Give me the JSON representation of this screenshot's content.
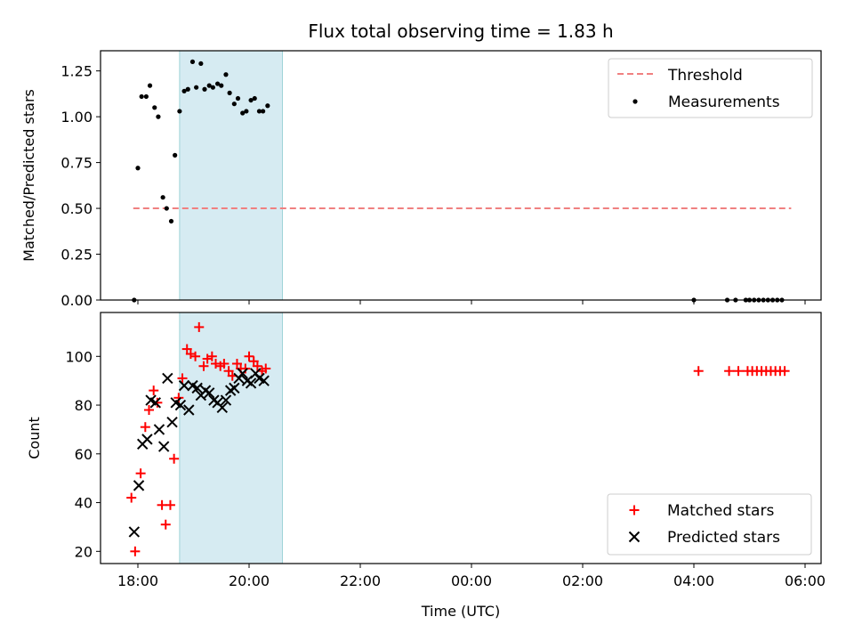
{
  "chart_data": [
    {
      "type": "scatter",
      "title": "Flux total observing time = 1.83 h",
      "xlabel": "",
      "ylabel": "Matched/Predicted stars",
      "ylim": [
        0,
        1.36
      ],
      "yticks": [
        "0.00",
        "0.25",
        "0.50",
        "0.75",
        "1.00",
        "1.25"
      ],
      "ytick_values": [
        0,
        0.25,
        0.5,
        0.75,
        1.0,
        1.25
      ],
      "legend_position": "top-right",
      "shaded_span": {
        "start": "18:45",
        "end": "20:36",
        "color": "#add8e6"
      },
      "threshold": {
        "name": "Threshold",
        "value": 0.5,
        "from": "17:55",
        "to": "05:45",
        "color": "#f08080"
      },
      "series": [
        {
          "name": "Measurements",
          "color": "#000000",
          "marker": "dot",
          "points": [
            [
              "17:56",
              0.0
            ],
            [
              "18:00",
              0.72
            ],
            [
              "18:04",
              1.11
            ],
            [
              "18:09",
              1.11
            ],
            [
              "18:13",
              1.17
            ],
            [
              "18:18",
              1.05
            ],
            [
              "18:22",
              1.0
            ],
            [
              "18:27",
              0.56
            ],
            [
              "18:31",
              0.5
            ],
            [
              "18:36",
              0.43
            ],
            [
              "18:40",
              0.79
            ],
            [
              "18:45",
              1.03
            ],
            [
              "18:50",
              1.14
            ],
            [
              "18:54",
              1.15
            ],
            [
              "18:59",
              1.3
            ],
            [
              "19:03",
              1.16
            ],
            [
              "19:08",
              1.29
            ],
            [
              "19:12",
              1.15
            ],
            [
              "19:17",
              1.17
            ],
            [
              "19:21",
              1.16
            ],
            [
              "19:26",
              1.18
            ],
            [
              "19:30",
              1.17
            ],
            [
              "19:35",
              1.23
            ],
            [
              "19:39",
              1.13
            ],
            [
              "19:44",
              1.07
            ],
            [
              "19:48",
              1.1
            ],
            [
              "19:53",
              1.02
            ],
            [
              "19:57",
              1.03
            ],
            [
              "20:02",
              1.09
            ],
            [
              "20:06",
              1.1
            ],
            [
              "20:11",
              1.03
            ],
            [
              "20:15",
              1.03
            ],
            [
              "20:20",
              1.06
            ],
            [
              "04:00",
              0.0
            ],
            [
              "04:36",
              0.0
            ],
            [
              "04:45",
              0.0
            ],
            [
              "04:56",
              0.0
            ],
            [
              "05:00",
              0.0
            ],
            [
              "05:05",
              0.0
            ],
            [
              "05:10",
              0.0
            ],
            [
              "05:15",
              0.0
            ],
            [
              "05:20",
              0.0
            ],
            [
              "05:25",
              0.0
            ],
            [
              "05:30",
              0.0
            ],
            [
              "05:35",
              0.0
            ]
          ]
        }
      ]
    },
    {
      "type": "scatter",
      "title": "",
      "xlabel": "Time (UTC)",
      "ylabel": "Count",
      "ylim": [
        15,
        118
      ],
      "yticks": [
        "20",
        "40",
        "60",
        "80",
        "100"
      ],
      "ytick_values": [
        20,
        40,
        60,
        80,
        100
      ],
      "xticks": [
        "18:00",
        "20:00",
        "22:00",
        "00:00",
        "02:00",
        "04:00",
        "06:00"
      ],
      "legend_position": "bottom-right",
      "shaded_span": {
        "start": "18:45",
        "end": "20:36",
        "color": "#add8e6"
      },
      "series": [
        {
          "name": "Matched stars",
          "color": "#ff0000",
          "marker": "plus",
          "points": [
            [
              "17:53",
              42
            ],
            [
              "17:57",
              20
            ],
            [
              "18:03",
              52
            ],
            [
              "18:08",
              71
            ],
            [
              "18:12",
              78
            ],
            [
              "18:17",
              86
            ],
            [
              "18:21",
              81
            ],
            [
              "18:26",
              39
            ],
            [
              "18:30",
              31
            ],
            [
              "18:35",
              39
            ],
            [
              "18:39",
              58
            ],
            [
              "18:44",
              83
            ],
            [
              "18:48",
              91
            ],
            [
              "18:53",
              103
            ],
            [
              "18:57",
              101
            ],
            [
              "19:02",
              100
            ],
            [
              "19:06",
              112
            ],
            [
              "19:11",
              96
            ],
            [
              "19:15",
              99
            ],
            [
              "19:20",
              100
            ],
            [
              "19:24",
              97
            ],
            [
              "19:29",
              96
            ],
            [
              "19:33",
              97
            ],
            [
              "19:38",
              94
            ],
            [
              "19:42",
              92
            ],
            [
              "19:47",
              97
            ],
            [
              "19:51",
              95
            ],
            [
              "19:56",
              95
            ],
            [
              "20:00",
              100
            ],
            [
              "20:05",
              98
            ],
            [
              "20:09",
              96
            ],
            [
              "20:14",
              94
            ],
            [
              "20:18",
              95
            ],
            [
              "04:05",
              94
            ],
            [
              "04:38",
              94
            ],
            [
              "04:48",
              94
            ],
            [
              "04:58",
              94
            ],
            [
              "05:03",
              94
            ],
            [
              "05:08",
              94
            ],
            [
              "05:13",
              94
            ],
            [
              "05:18",
              94
            ],
            [
              "05:23",
              94
            ],
            [
              "05:28",
              94
            ],
            [
              "05:33",
              94
            ],
            [
              "05:38",
              94
            ]
          ]
        },
        {
          "name": "Predicted stars",
          "color": "#000000",
          "marker": "x",
          "points": [
            [
              "17:56",
              28
            ],
            [
              "18:01",
              47
            ],
            [
              "18:05",
              64
            ],
            [
              "18:10",
              66
            ],
            [
              "18:14",
              82
            ],
            [
              "18:19",
              81
            ],
            [
              "18:23",
              70
            ],
            [
              "18:28",
              63
            ],
            [
              "18:32",
              91
            ],
            [
              "18:37",
              73
            ],
            [
              "18:41",
              81
            ],
            [
              "18:46",
              80
            ],
            [
              "18:50",
              88
            ],
            [
              "18:55",
              78
            ],
            [
              "18:59",
              88
            ],
            [
              "19:04",
              87
            ],
            [
              "19:08",
              84
            ],
            [
              "19:13",
              86
            ],
            [
              "19:17",
              85
            ],
            [
              "19:22",
              82
            ],
            [
              "19:26",
              81
            ],
            [
              "19:31",
              79
            ],
            [
              "19:35",
              82
            ],
            [
              "19:40",
              86
            ],
            [
              "19:44",
              87
            ],
            [
              "19:49",
              91
            ],
            [
              "19:53",
              93
            ],
            [
              "19:58",
              90
            ],
            [
              "20:02",
              89
            ],
            [
              "20:07",
              93
            ],
            [
              "20:11",
              91
            ],
            [
              "20:16",
              90
            ]
          ]
        }
      ]
    }
  ]
}
